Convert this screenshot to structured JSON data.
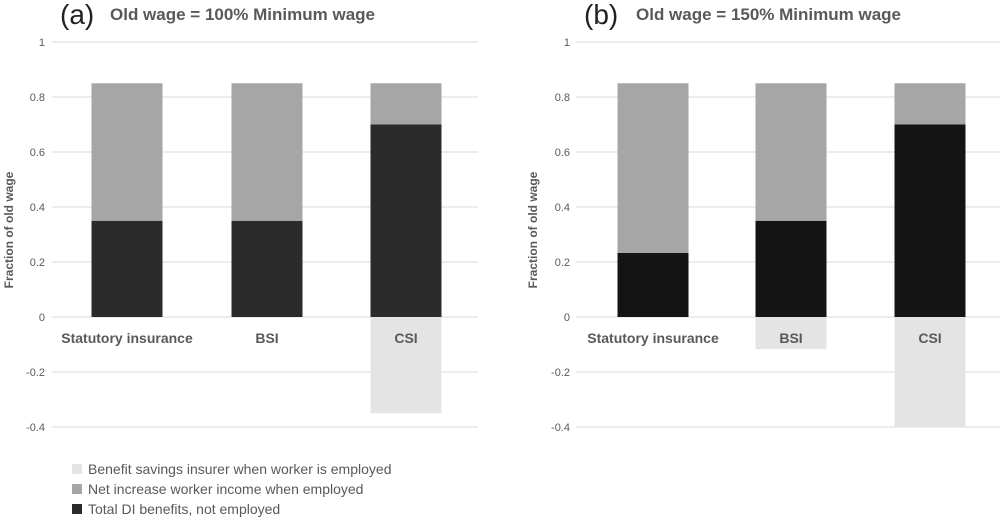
{
  "chart_data": [
    {
      "type": "bar",
      "stacked": true,
      "panel_tag": "(a)",
      "title": "Old wage = 100% Minimum wage",
      "ylabel": "Fraction of old wage",
      "ylim": [
        -0.4,
        1
      ],
      "yticks": [
        "1",
        "0.8",
        "0.6",
        "0.4",
        "0.2",
        "0",
        "-0.2",
        "-0.4"
      ],
      "grid": true,
      "categories": [
        "Statutory insurance",
        "BSI",
        "CSI"
      ],
      "series": [
        {
          "name": "Total DI benefits, not employed",
          "values": [
            0.35,
            0.35,
            0.7
          ],
          "color": "#2b2b2b"
        },
        {
          "name": "Net increase worker income when employed",
          "values": [
            0.5,
            0.5,
            0.15
          ],
          "color": "#a6a6a6"
        },
        {
          "name": "Benefit savings insurer when worker is employed",
          "values": [
            0,
            0,
            -0.35
          ],
          "color": "#e4e4e4"
        }
      ]
    },
    {
      "type": "bar",
      "stacked": true,
      "panel_tag": "(b)",
      "title": "Old wage = 150% Minimum wage",
      "ylabel": "Fraction of old wage",
      "ylim": [
        -0.4,
        1
      ],
      "yticks": [
        "1",
        "0.8",
        "0.6",
        "0.4",
        "0.2",
        "0",
        "-0.2",
        "-0.4"
      ],
      "grid": true,
      "categories": [
        "Statutory insurance",
        "BSI",
        "CSI"
      ],
      "series": [
        {
          "name": "Total DI benefits, not employed",
          "values": [
            0.233,
            0.35,
            0.7
          ],
          "color": "#141414"
        },
        {
          "name": "Net increase worker income when employed",
          "values": [
            0.617,
            0.5,
            0.15
          ],
          "color": "#a6a6a6"
        },
        {
          "name": "Benefit savings insurer when worker is employed",
          "values": [
            0,
            -0.117,
            -0.4
          ],
          "color": "#e4e4e4"
        }
      ]
    }
  ],
  "legend": {
    "placement": "bottom-left",
    "items": [
      {
        "label": "Benefit savings insurer when worker is employed",
        "color": "#e4e4e4"
      },
      {
        "label": "Net increase worker income when employed",
        "color": "#a6a6a6"
      },
      {
        "label": "Total DI benefits, not employed",
        "color": "#2b2b2b"
      }
    ]
  }
}
